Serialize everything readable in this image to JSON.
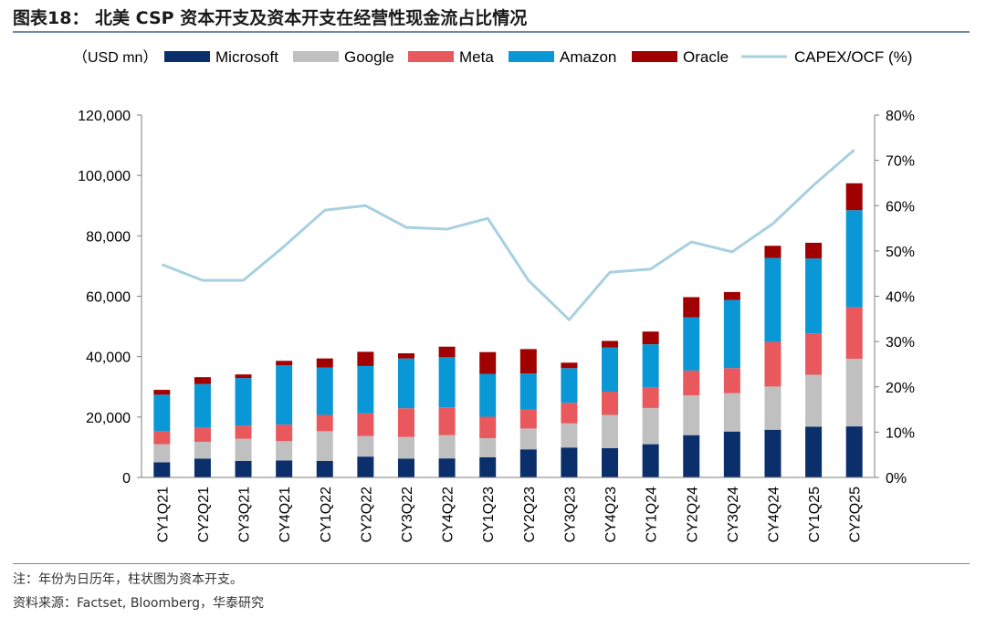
{
  "header": {
    "title": "图表18： 北美 CSP 资本开支及资本开支在经营性现金流占比情况"
  },
  "footer": {
    "note": "注：年份为日历年，柱状图为资本开支。",
    "source": "资料来源：Factset, Bloomberg，华泰研究"
  },
  "chart_data": {
    "type": "bar",
    "stacked": true,
    "unit_label": "（USD mn）",
    "categories": [
      "CY1Q21",
      "CY2Q21",
      "CY3Q21",
      "CY4Q21",
      "CY1Q22",
      "CY2Q22",
      "CY3Q22",
      "CY4Q22",
      "CY1Q23",
      "CY2Q23",
      "CY3Q23",
      "CY4Q23",
      "CY1Q24",
      "CY2Q24",
      "CY3Q24",
      "CY4Q24",
      "CY1Q25",
      "CY2Q25"
    ],
    "series": [
      {
        "name": "Microsoft",
        "color": "#0b2f6b",
        "values": [
          5000,
          6200,
          5500,
          5600,
          5500,
          6900,
          6200,
          6300,
          6700,
          9300,
          9900,
          9700,
          11000,
          14000,
          15200,
          15800,
          16800,
          16900
        ]
      },
      {
        "name": "Google",
        "color": "#c0c0c0",
        "values": [
          6000,
          5600,
          7300,
          6400,
          9800,
          6800,
          7200,
          7700,
          6300,
          6900,
          8000,
          11000,
          12000,
          13200,
          12700,
          14300,
          17200,
          22400
        ]
      },
      {
        "name": "Meta",
        "color": "#e8585c",
        "values": [
          4300,
          4600,
          4400,
          5500,
          5400,
          7500,
          9500,
          9200,
          7100,
          6200,
          6800,
          7700,
          6700,
          8200,
          8300,
          14800,
          13700,
          17000
        ]
      },
      {
        "name": "Amazon",
        "color": "#0a97d6",
        "values": [
          12100,
          14500,
          15700,
          19600,
          15700,
          15700,
          16500,
          16600,
          14200,
          12000,
          11500,
          14600,
          14400,
          17600,
          22600,
          27800,
          24800,
          32200
        ]
      },
      {
        "name": "Oracle",
        "color": "#a00000",
        "values": [
          1600,
          2300,
          1200,
          1500,
          3000,
          4700,
          1700,
          3500,
          7200,
          8100,
          1800,
          2200,
          4200,
          6700,
          2600,
          4000,
          5200,
          8900
        ]
      }
    ],
    "line": {
      "name": "CAPEX/OCF (%)",
      "color": "#a8d0e0",
      "axis": "right",
      "values": [
        47,
        43.5,
        43.5,
        51,
        59,
        60,
        55.2,
        54.8,
        57.2,
        43.5,
        34.8,
        45.3,
        46,
        52,
        49.8,
        56,
        64.5,
        72.3
      ]
    },
    "y_left": {
      "min": 0,
      "max": 120000,
      "ticks": [
        "0",
        "20,000",
        "40,000",
        "60,000",
        "80,000",
        "100,000",
        "120,000"
      ]
    },
    "y_right": {
      "min": 0,
      "max": 80,
      "ticks": [
        "0%",
        "10%",
        "20%",
        "30%",
        "40%",
        "50%",
        "60%",
        "70%",
        "80%"
      ]
    },
    "legend_placement": "top",
    "grid": false
  }
}
